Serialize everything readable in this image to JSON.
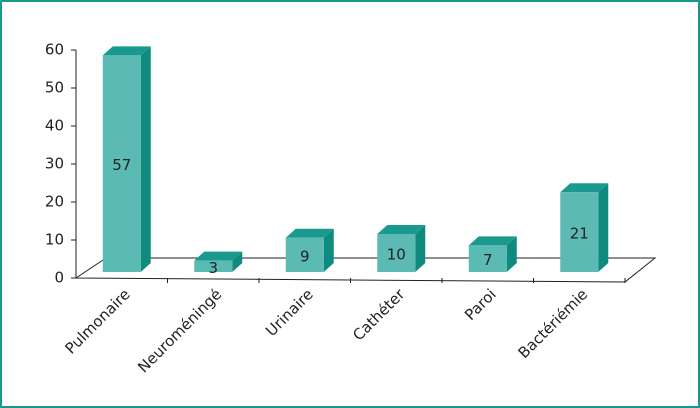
{
  "chart_data": {
    "type": "bar3d",
    "categories": [
      "Pulmonaire",
      "Neuroméningé",
      "Urinaire",
      "Cathéter",
      "Paroi",
      "Bactériémie"
    ],
    "values": [
      57,
      3,
      9,
      10,
      7,
      21
    ],
    "color": "#5bbab3",
    "ylim": [
      0,
      60
    ],
    "yticks": [
      0,
      10,
      20,
      30,
      40,
      50,
      60
    ]
  }
}
